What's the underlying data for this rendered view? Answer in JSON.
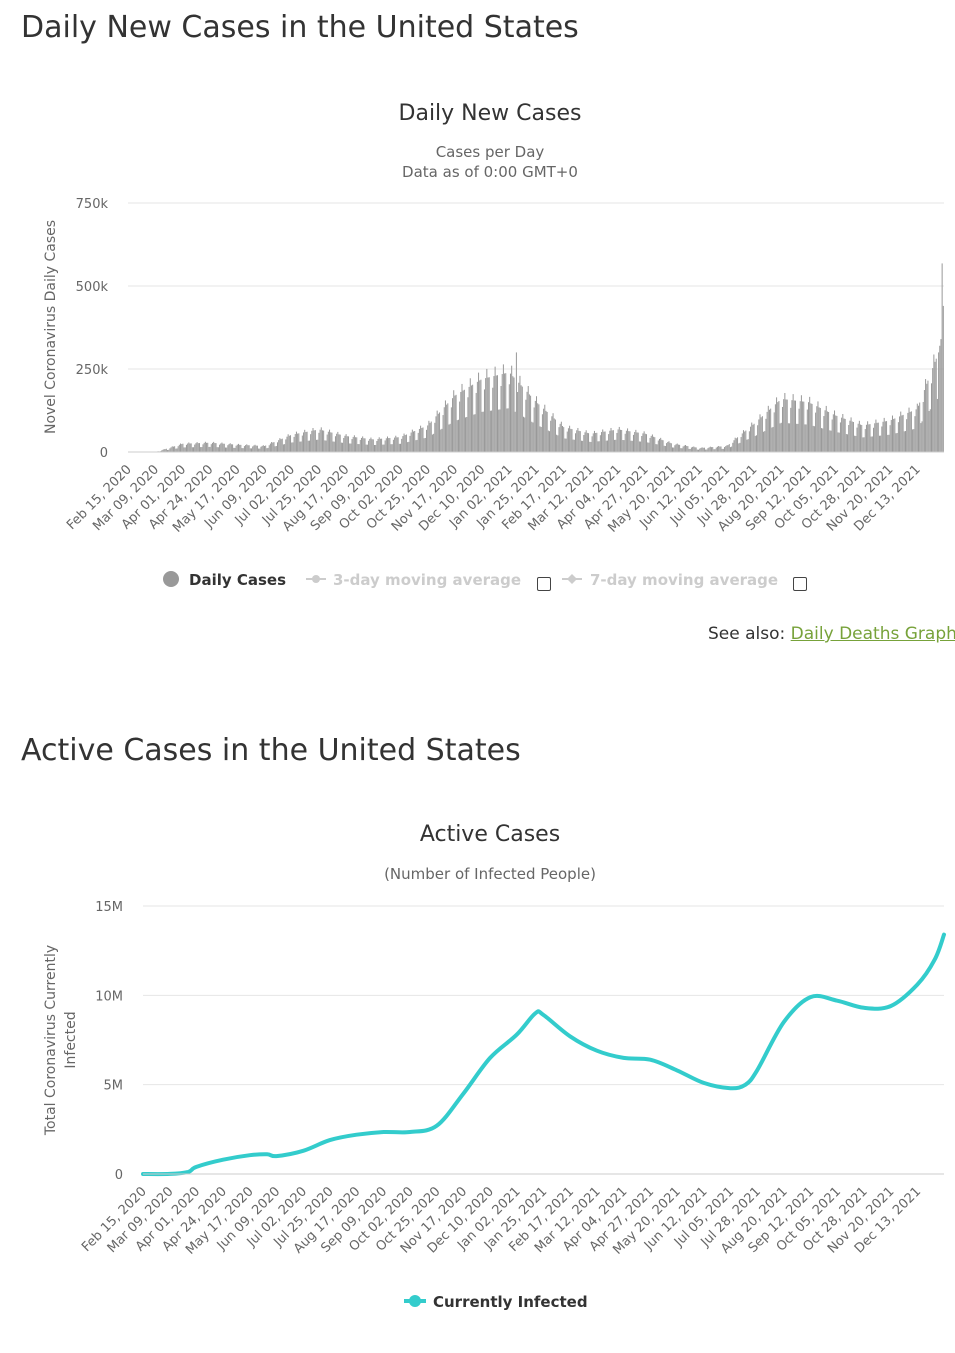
{
  "sections": [
    {
      "title": "Daily New Cases in the United States"
    },
    {
      "title": "Active Cases in the United States"
    }
  ],
  "see_also": {
    "prefix": "See also: ",
    "link": "Daily Deaths Graph"
  },
  "chart_data": [
    {
      "type": "bar",
      "title": "Daily New Cases",
      "subtitle_lines": [
        "Cases per Day",
        "Data as of 0:00 GMT+0"
      ],
      "ylabel": "Novel Coronavirus Daily Cases",
      "ylim": [
        0,
        750000
      ],
      "yticks": [
        {
          "v": 0,
          "label": "0"
        },
        {
          "v": 250000,
          "label": "250k"
        },
        {
          "v": 500000,
          "label": "500k"
        },
        {
          "v": 750000,
          "label": "750k"
        }
      ],
      "x_range": [
        "2020-02-15",
        "2022-01-05"
      ],
      "x_tick_labels": [
        "Feb 15, 2020",
        "Mar 09, 2020",
        "Apr 01, 2020",
        "Apr 24, 2020",
        "May 17, 2020",
        "Jun 09, 2020",
        "Jul 02, 2020",
        "Jul 25, 2020",
        "Aug 17, 2020",
        "Sep 09, 2020",
        "Oct 02, 2020",
        "Oct 25, 2020",
        "Nov 17, 2020",
        "Dec 10, 2020",
        "Jan 02, 2021",
        "Jan 25, 2021",
        "Feb 17, 2021",
        "Mar 12, 2021",
        "Apr 04, 2021",
        "Apr 27, 2021",
        "May 20, 2021",
        "Jun 12, 2021",
        "Jul 05, 2021",
        "Jul 28, 2021",
        "Aug 20, 2021",
        "Sep 12, 2021",
        "Oct 05, 2021",
        "Oct 28, 2021",
        "Nov 20, 2021",
        "Dec 13, 2021"
      ],
      "grid": true,
      "legend_position": "bottom-center",
      "legend": [
        {
          "name": "Daily Cases",
          "enabled": true
        },
        {
          "name": "3-day moving average",
          "enabled": false
        },
        {
          "name": "7-day moving average",
          "enabled": false
        }
      ],
      "bar_color": "#999999",
      "series": [
        {
          "name": "Daily Cases",
          "curve_by_tick": [
            0,
            0,
            25000,
            28000,
            22000,
            18000,
            52000,
            68000,
            48000,
            38000,
            45000,
            80000,
            170000,
            220000,
            240000,
            150000,
            75000,
            55000,
            68000,
            55000,
            25000,
            12000,
            18000,
            85000,
            160000,
            150000,
            110000,
            80000,
            95000,
            130000
          ],
          "final_days": [
            300000,
            320000,
            340000,
            568000,
            440000
          ],
          "notable_points": [
            {
              "date": "2021-01-08",
              "value": 300000
            },
            {
              "date": "2022-01-03",
              "value": 568000
            }
          ]
        }
      ]
    },
    {
      "type": "line",
      "title": "Active Cases",
      "subtitle": "(Number of Infected People)",
      "ylabel": "Total Coronavirus Currently Infected",
      "ylim": [
        0,
        15000000
      ],
      "yticks": [
        {
          "v": 0,
          "label": "0"
        },
        {
          "v": 5000000,
          "label": "5M"
        },
        {
          "v": 10000000,
          "label": "10M"
        },
        {
          "v": 15000000,
          "label": "15M"
        }
      ],
      "x_range": [
        "2020-02-15",
        "2022-01-05"
      ],
      "x_tick_labels": [
        "Feb 15, 2020",
        "Mar 09, 2020",
        "Apr 01, 2020",
        "Apr 24, 2020",
        "May 17, 2020",
        "Jun 09, 2020",
        "Jul 02, 2020",
        "Jul 25, 2020",
        "Aug 17, 2020",
        "Sep 09, 2020",
        "Oct 02, 2020",
        "Oct 25, 2020",
        "Nov 17, 2020",
        "Dec 10, 2020",
        "Jan 02, 2021",
        "Jan 25, 2021",
        "Feb 17, 2021",
        "Mar 12, 2021",
        "Apr 04, 2021",
        "Apr 27, 2021",
        "May 20, 2021",
        "Jun 12, 2021",
        "Jul 05, 2021",
        "Jul 28, 2021",
        "Aug 20, 2021",
        "Sep 12, 2021",
        "Oct 05, 2021",
        "Oct 28, 2021",
        "Nov 20, 2021",
        "Dec 13, 2021"
      ],
      "grid": true,
      "legend_position": "bottom-center",
      "line_color": "#33cccc",
      "series": [
        {
          "name": "Currently Infected",
          "points": [
            [
              "2020-02-15",
              0
            ],
            [
              "2020-03-09",
              5000
            ],
            [
              "2020-03-25",
              120000
            ],
            [
              "2020-04-01",
              400000
            ],
            [
              "2020-04-24",
              800000
            ],
            [
              "2020-05-17",
              1050000
            ],
            [
              "2020-06-01",
              1100000
            ],
            [
              "2020-06-09",
              1000000
            ],
            [
              "2020-07-02",
              1300000
            ],
            [
              "2020-07-25",
              1900000
            ],
            [
              "2020-08-17",
              2200000
            ],
            [
              "2020-09-09",
              2350000
            ],
            [
              "2020-10-02",
              2350000
            ],
            [
              "2020-10-25",
              2700000
            ],
            [
              "2020-11-17",
              4500000
            ],
            [
              "2020-12-10",
              6500000
            ],
            [
              "2021-01-02",
              7800000
            ],
            [
              "2021-01-18",
              9000000
            ],
            [
              "2021-01-25",
              8900000
            ],
            [
              "2021-02-17",
              7700000
            ],
            [
              "2021-03-12",
              6900000
            ],
            [
              "2021-04-04",
              6500000
            ],
            [
              "2021-04-27",
              6400000
            ],
            [
              "2021-05-20",
              5800000
            ],
            [
              "2021-06-12",
              5100000
            ],
            [
              "2021-07-05",
              4800000
            ],
            [
              "2021-07-18",
              5000000
            ],
            [
              "2021-07-28",
              5800000
            ],
            [
              "2021-08-20",
              8500000
            ],
            [
              "2021-09-12",
              9900000
            ],
            [
              "2021-10-05",
              9700000
            ],
            [
              "2021-10-28",
              9300000
            ],
            [
              "2021-11-20",
              9400000
            ],
            [
              "2021-12-13",
              10600000
            ],
            [
              "2021-12-28",
              12000000
            ],
            [
              "2022-01-05",
              13400000
            ]
          ]
        }
      ]
    }
  ]
}
